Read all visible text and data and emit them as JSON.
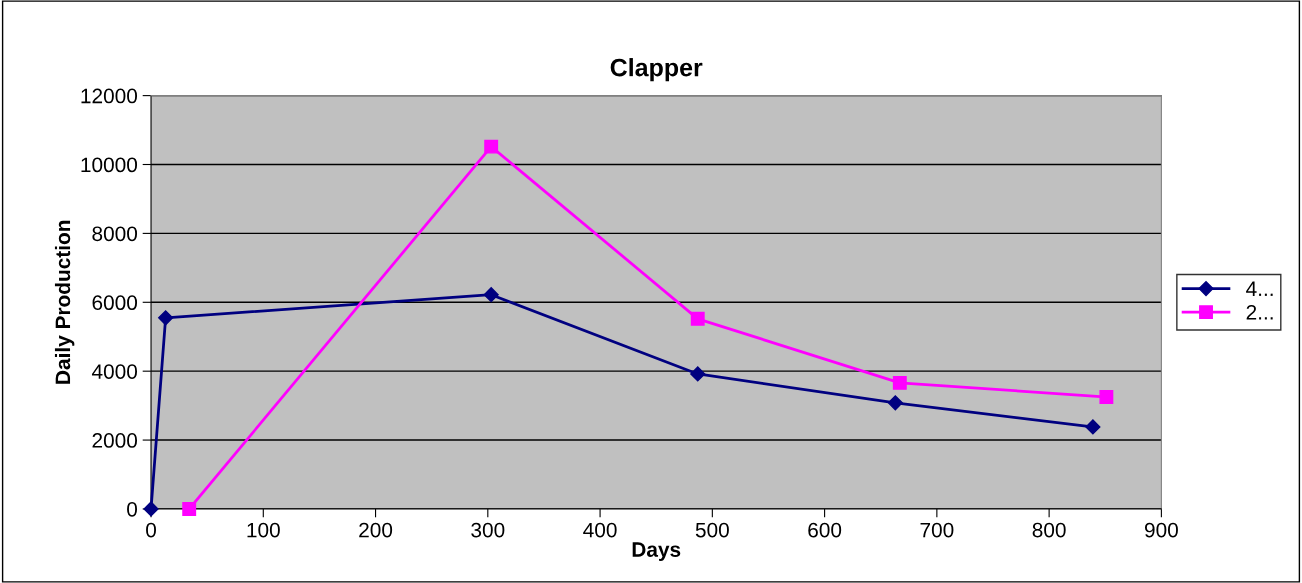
{
  "chart_data": {
    "type": "line",
    "title": "Clapper",
    "xlabel": "Days",
    "ylabel": "Daily Production",
    "xlim": [
      0,
      900
    ],
    "xticks": [
      0,
      100,
      200,
      300,
      400,
      500,
      600,
      700,
      800,
      900
    ],
    "ylim": [
      0,
      12000
    ],
    "yticks": [
      0,
      2000,
      4000,
      6000,
      8000,
      10000,
      12000
    ],
    "grid": "y",
    "legend": "right",
    "series": [
      {
        "name": "4...",
        "color": "#000080",
        "marker": "diamond",
        "x": [
          0,
          13,
          303,
          487,
          663,
          839
        ],
        "values": [
          0,
          5550,
          6220,
          3920,
          3080,
          2380
        ]
      },
      {
        "name": "2...",
        "color": "#ff00ff",
        "marker": "square",
        "x": [
          34,
          303,
          487,
          667,
          851
        ],
        "values": [
          0,
          10520,
          5520,
          3660,
          3250
        ]
      }
    ]
  }
}
